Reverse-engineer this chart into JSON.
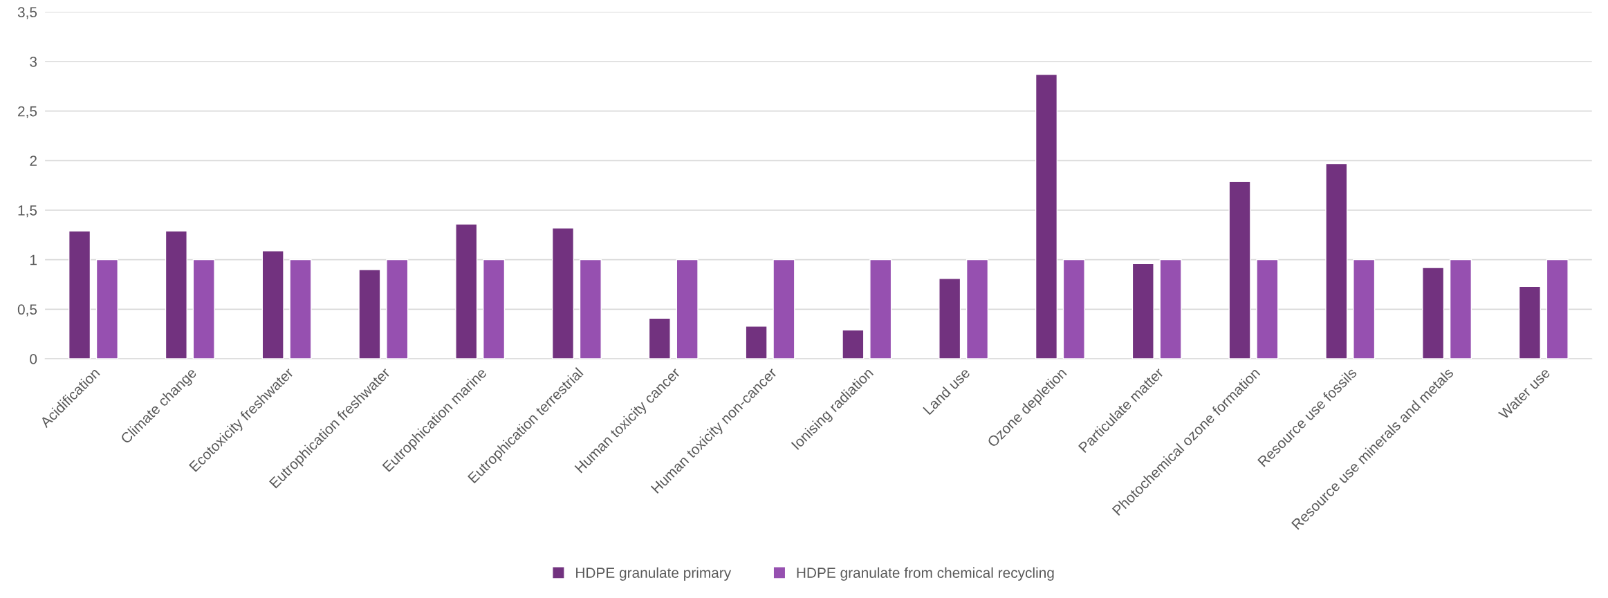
{
  "chart_data": {
    "type": "bar",
    "categories": [
      "Acidification",
      "Climate change",
      "Ecotoxicity freshwater",
      "Eutrophication freshwater",
      "Eutrophication marine",
      "Eutrophication terrestrial",
      "Human toxicity cancer",
      "Human toxicity non-cancer",
      "Ionising radiation",
      "Land use",
      "Ozone depletion",
      "Particulate matter",
      "Photochemical ozone formation",
      "Resource use fossils",
      "Resource use minerals and metals",
      "Water use"
    ],
    "series": [
      {
        "name": "HDPE granulate primary",
        "color": "#72327f",
        "values": [
          1.29,
          1.29,
          1.09,
          0.9,
          1.36,
          1.32,
          0.41,
          0.33,
          0.29,
          0.81,
          2.87,
          0.96,
          1.79,
          1.97,
          0.92,
          0.73
        ]
      },
      {
        "name": "HDPE granulate from chemical recycling",
        "color": "#9650b0",
        "values": [
          1,
          1,
          1,
          1,
          1,
          1,
          1,
          1,
          1,
          1,
          1,
          1,
          1,
          1,
          1,
          1
        ]
      }
    ],
    "ylim": [
      0,
      3.5
    ],
    "yticks": [
      0,
      {
        "value": 0.5,
        "label": "0,5"
      },
      1,
      {
        "value": 1.5,
        "label": "1,5"
      },
      2,
      {
        "value": 2.5,
        "label": "2,5"
      },
      3,
      {
        "value": 3.5,
        "label": "3,5"
      }
    ],
    "grid": "y",
    "legend": "bottom"
  }
}
